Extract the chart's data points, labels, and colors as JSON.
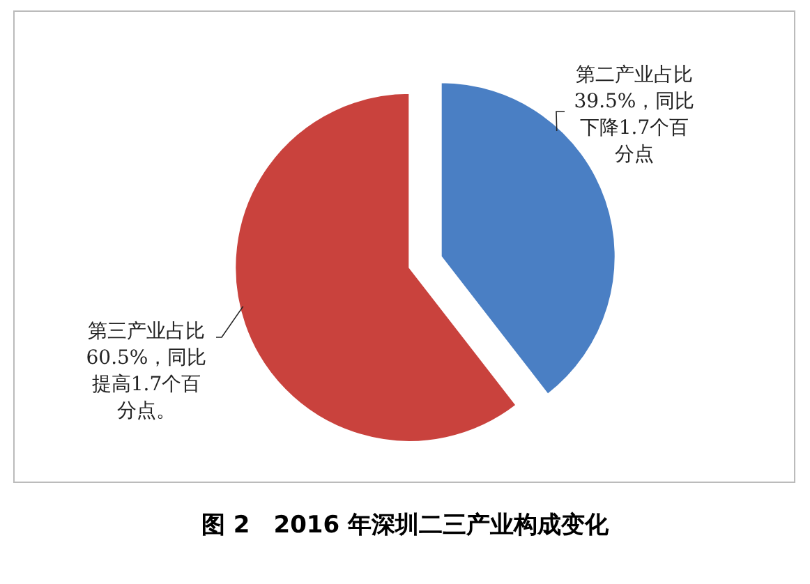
{
  "chart_data": {
    "type": "pie",
    "title": "图 2　2016 年深圳二三产业构成变化",
    "categories": [
      "第二产业占比39.5%，同比下降1.7个百分点",
      "第三产业占比60.5%，同比提高1.7个百分点。"
    ],
    "values": [
      39.5,
      60.5
    ],
    "colors": [
      "#4a7fc4",
      "#c9423d"
    ]
  }
}
